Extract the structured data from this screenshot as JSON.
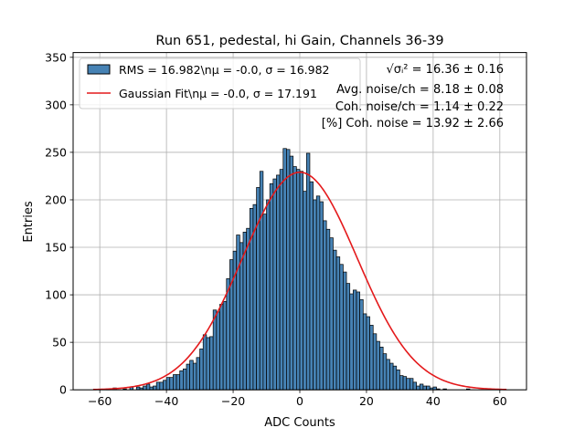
{
  "colors": {
    "bar_fill": "#4682b4",
    "bar_edge": "#000000",
    "fit_line": "#e41a1c",
    "grid": "#b0b0b0"
  },
  "chart_data": {
    "type": "bar",
    "title": "Run 651, pedestal, hi Gain, Channels 36-39",
    "xlabel": "ADC Counts",
    "ylabel": "Entries",
    "xlim": [
      -68,
      68
    ],
    "ylim": [
      0,
      355
    ],
    "grid": true,
    "legend_placement": "top-left",
    "x_ticks": [
      -60,
      -40,
      -20,
      0,
      20,
      40,
      60
    ],
    "y_ticks": [
      0,
      50,
      100,
      150,
      200,
      250,
      300,
      350
    ],
    "histogram": {
      "name": "RMS = 16.982\\nμ = -0.0, σ = 16.982",
      "bin_width": 1,
      "bin_start": -60,
      "counts": [
        0,
        0,
        1,
        0,
        2,
        0,
        0,
        1,
        0,
        3,
        0,
        3,
        2,
        4,
        6,
        3,
        4,
        8,
        8,
        10,
        13,
        13,
        16,
        16,
        20,
        22,
        27,
        31,
        28,
        34,
        43,
        58,
        55,
        56,
        84,
        82,
        90,
        93,
        117,
        137,
        146,
        163,
        155,
        166,
        170,
        191,
        195,
        213,
        230,
        185,
        200,
        217,
        222,
        226,
        232,
        254,
        253,
        246,
        235,
        232,
        230,
        209,
        249,
        219,
        200,
        204,
        198,
        178,
        169,
        160,
        147,
        140,
        132,
        124,
        112,
        101,
        105,
        103,
        95,
        80,
        77,
        68,
        59,
        51,
        45,
        38,
        32,
        28,
        25,
        21,
        15,
        14,
        12,
        12,
        8,
        4,
        6,
        4,
        4,
        2,
        3,
        1,
        0,
        1,
        0,
        0,
        0,
        0,
        0,
        0,
        1,
        0,
        0,
        0,
        0,
        0,
        0
      ]
    },
    "series": [
      {
        "name": "Gaussian Fit\\nμ = -0.0, σ = 17.191",
        "type": "line",
        "amplitude": 229,
        "mu": 0.0,
        "sigma": 17.191,
        "x_range": [
          -62,
          62
        ]
      }
    ],
    "annotations": [
      "√σᵢ² = 16.36 ± 0.16",
      "Avg. noise/ch = 8.18 ± 0.08",
      "Coh. noise/ch = 1.14 ± 0.22",
      "[%] Coh. noise = 13.92 ± 2.66"
    ]
  },
  "legend": [
    {
      "label": "RMS = 16.982\\nμ = -0.0, σ = 16.982",
      "kind": "patch"
    },
    {
      "label": "Gaussian Fit\\nμ = -0.0, σ = 17.191",
      "kind": "line"
    }
  ]
}
